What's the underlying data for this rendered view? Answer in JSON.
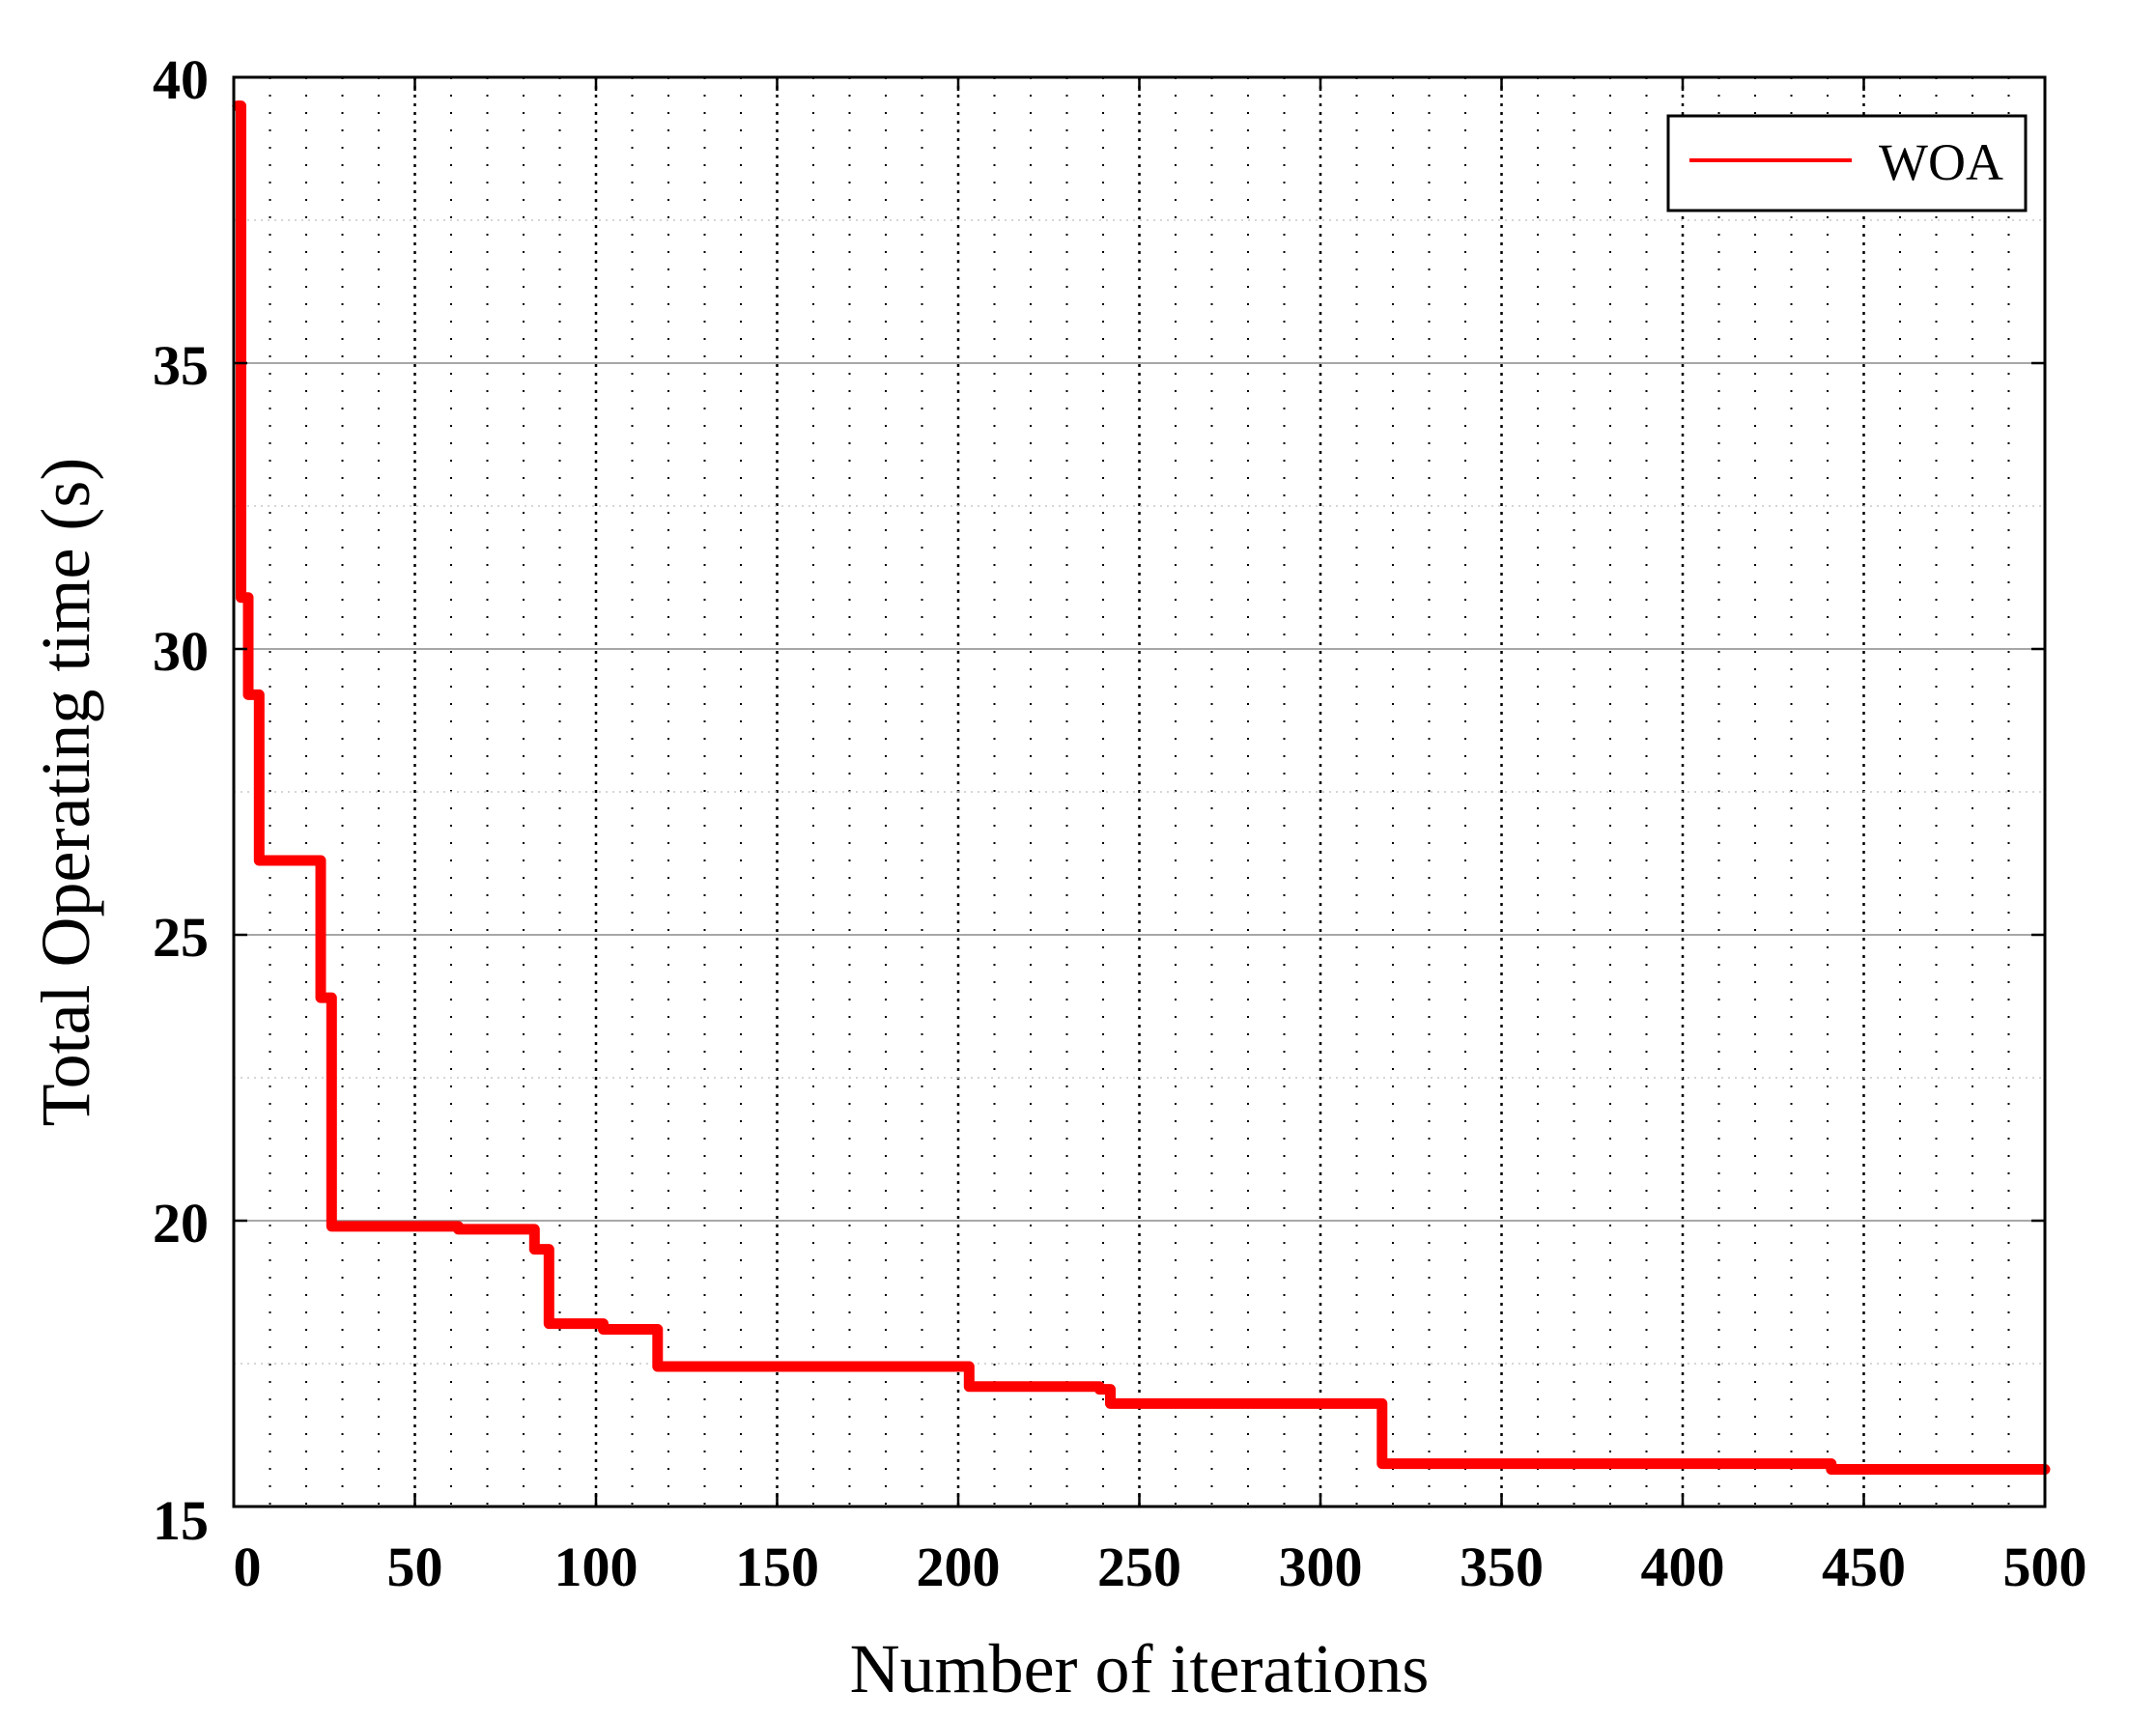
{
  "chart_data": {
    "type": "line",
    "xlabel": "Number of iterations",
    "ylabel": "Total Operating time (s)",
    "xlim": [
      0,
      500
    ],
    "ylim": [
      15,
      40
    ],
    "xticks": [
      0,
      50,
      100,
      150,
      200,
      250,
      300,
      350,
      400,
      450,
      500
    ],
    "yticks": [
      15,
      20,
      25,
      30,
      35,
      40
    ],
    "x_tick_labels": [
      "0",
      "50",
      "100",
      "150",
      "200",
      "250",
      "300",
      "350",
      "400",
      "450",
      "500"
    ],
    "y_tick_labels": [
      "15",
      "20",
      "25",
      "30",
      "35",
      "40"
    ],
    "grid": true,
    "legend_position": "top-right",
    "series": [
      {
        "name": "WOA",
        "color": "#ff0000",
        "step": true,
        "x": [
          1,
          2,
          4,
          7,
          24,
          27,
          31,
          62,
          83,
          87,
          102,
          117,
          203,
          239,
          242,
          317,
          441,
          500
        ],
        "y": [
          39.5,
          30.9,
          29.2,
          26.3,
          23.9,
          19.9,
          19.9,
          19.85,
          19.5,
          18.2,
          18.1,
          17.45,
          17.1,
          17.05,
          16.8,
          15.75,
          15.65,
          15.65
        ]
      }
    ]
  }
}
